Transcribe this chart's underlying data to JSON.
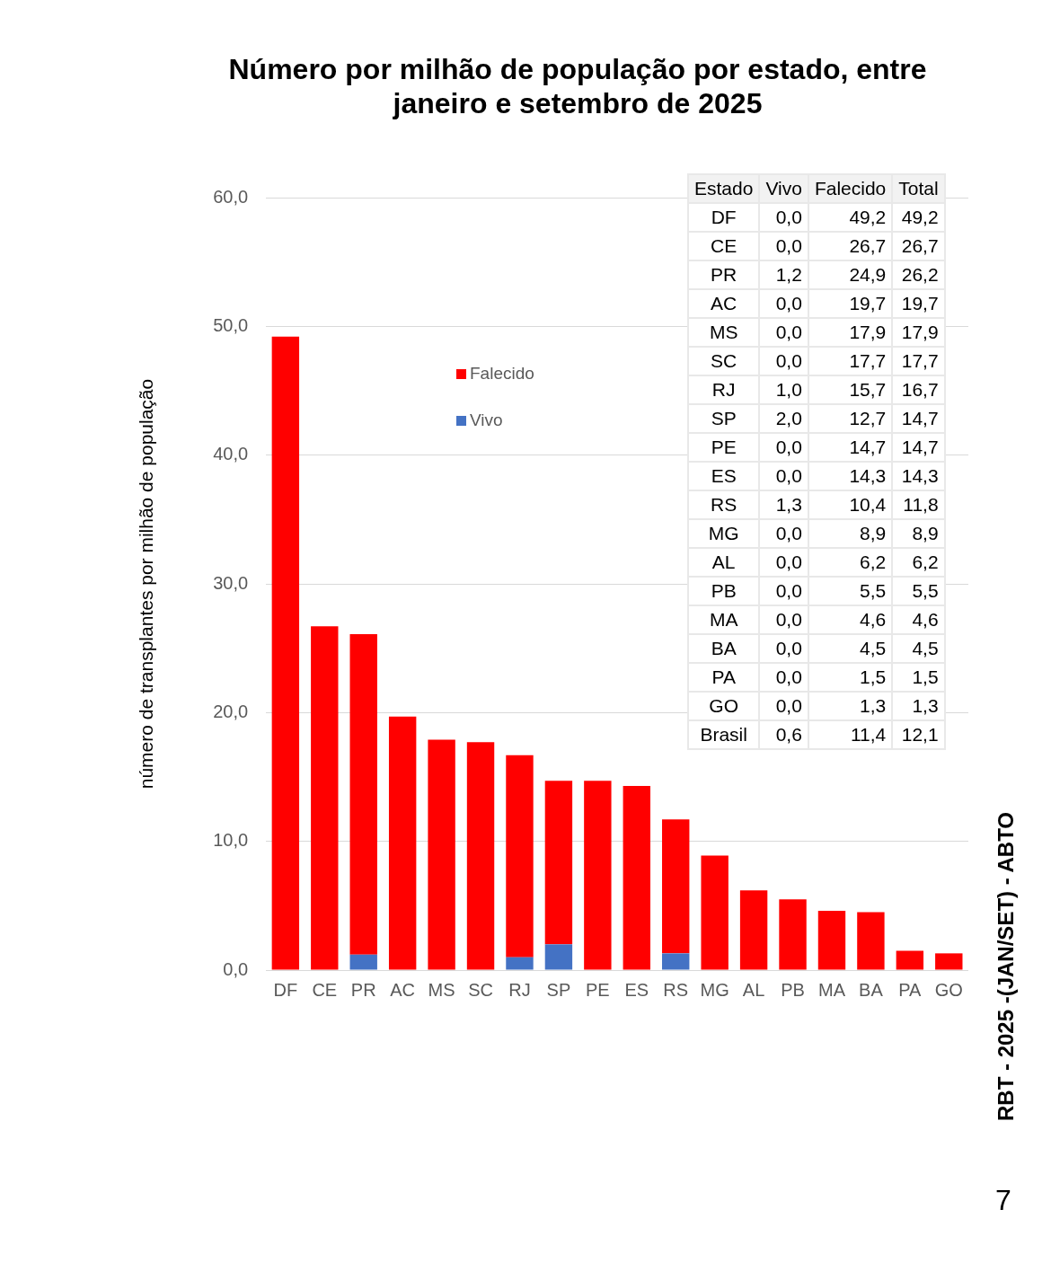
{
  "chart_data": [
    {
      "type": "bar",
      "stacked": true,
      "title": "Número por milhão de população por estado, entre janeiro e setembro de 2025",
      "ylabel": "número de transplantes por milhão de população",
      "categories": [
        "DF",
        "CE",
        "PR",
        "AC",
        "MS",
        "SC",
        "RJ",
        "SP",
        "PE",
        "ES",
        "RS",
        "MG",
        "AL",
        "PB",
        "MA",
        "BA",
        "PA",
        "GO"
      ],
      "series": [
        {
          "name": "Vivo",
          "color": "#4472c4",
          "values": [
            0,
            0,
            1.2,
            0,
            0,
            0,
            1.0,
            2.0,
            0,
            0,
            1.3,
            0,
            0,
            0,
            0,
            0,
            0,
            0
          ]
        },
        {
          "name": "Falecido",
          "color": "#ff0000",
          "values": [
            49.2,
            26.7,
            24.9,
            19.7,
            17.9,
            17.7,
            15.7,
            12.7,
            14.7,
            14.3,
            10.4,
            8.9,
            6.2,
            5.5,
            4.6,
            4.5,
            1.5,
            1.3
          ]
        }
      ],
      "ylim": [
        0,
        60
      ],
      "yticks": [
        {
          "value": 0,
          "label": "0,0"
        },
        {
          "value": 10,
          "label": "10,0"
        },
        {
          "value": 20,
          "label": "20,0"
        },
        {
          "value": 30,
          "label": "30,0"
        },
        {
          "value": 40,
          "label": "40,0"
        },
        {
          "value": 50,
          "label": "50,0"
        },
        {
          "value": 60,
          "label": "60,0"
        }
      ],
      "grid": "y",
      "legend": "top",
      "annotations": [
        "RBT - 2025 -(JAN/SET) - ABTO",
        "7"
      ]
    },
    {
      "type": "other",
      "ylabel": "Estado",
      "categories": [
        "Vivo",
        "Falecido",
        "Total"
      ],
      "y_categories": [
        "DF",
        "CE",
        "PR",
        "AC",
        "MS",
        "SC",
        "RJ",
        "SP",
        "PE",
        "ES",
        "RS",
        "MG",
        "AL",
        "PB",
        "MA",
        "BA",
        "PA",
        "GO",
        "Brasil"
      ],
      "cell_labels": [
        [
          "0,0",
          "49,2",
          "49,2"
        ],
        [
          "0,0",
          "26,7",
          "26,7"
        ],
        [
          "1,2",
          "24,9",
          "26,2"
        ],
        [
          "0,0",
          "19,7",
          "19,7"
        ],
        [
          "0,0",
          "17,9",
          "17,9"
        ],
        [
          "0,0",
          "17,7",
          "17,7"
        ],
        [
          "1,0",
          "15,7",
          "16,7"
        ],
        [
          "2,0",
          "12,7",
          "14,7"
        ],
        [
          "0,0",
          "14,7",
          "14,7"
        ],
        [
          "0,0",
          "14,3",
          "14,3"
        ],
        [
          "1,3",
          "10,4",
          "11,8"
        ],
        [
          "0,0",
          "8,9",
          "8,9"
        ],
        [
          "0,0",
          "6,2",
          "6,2"
        ],
        [
          "0,0",
          "5,5",
          "5,5"
        ],
        [
          "0,0",
          "4,6",
          "4,6"
        ],
        [
          "0,0",
          "4,5",
          "4,5"
        ],
        [
          "0,0",
          "1,5",
          "1,5"
        ],
        [
          "0,0",
          "1,3",
          "1,3"
        ],
        [
          "0,6",
          "11,4",
          "12,1"
        ]
      ]
    }
  ]
}
